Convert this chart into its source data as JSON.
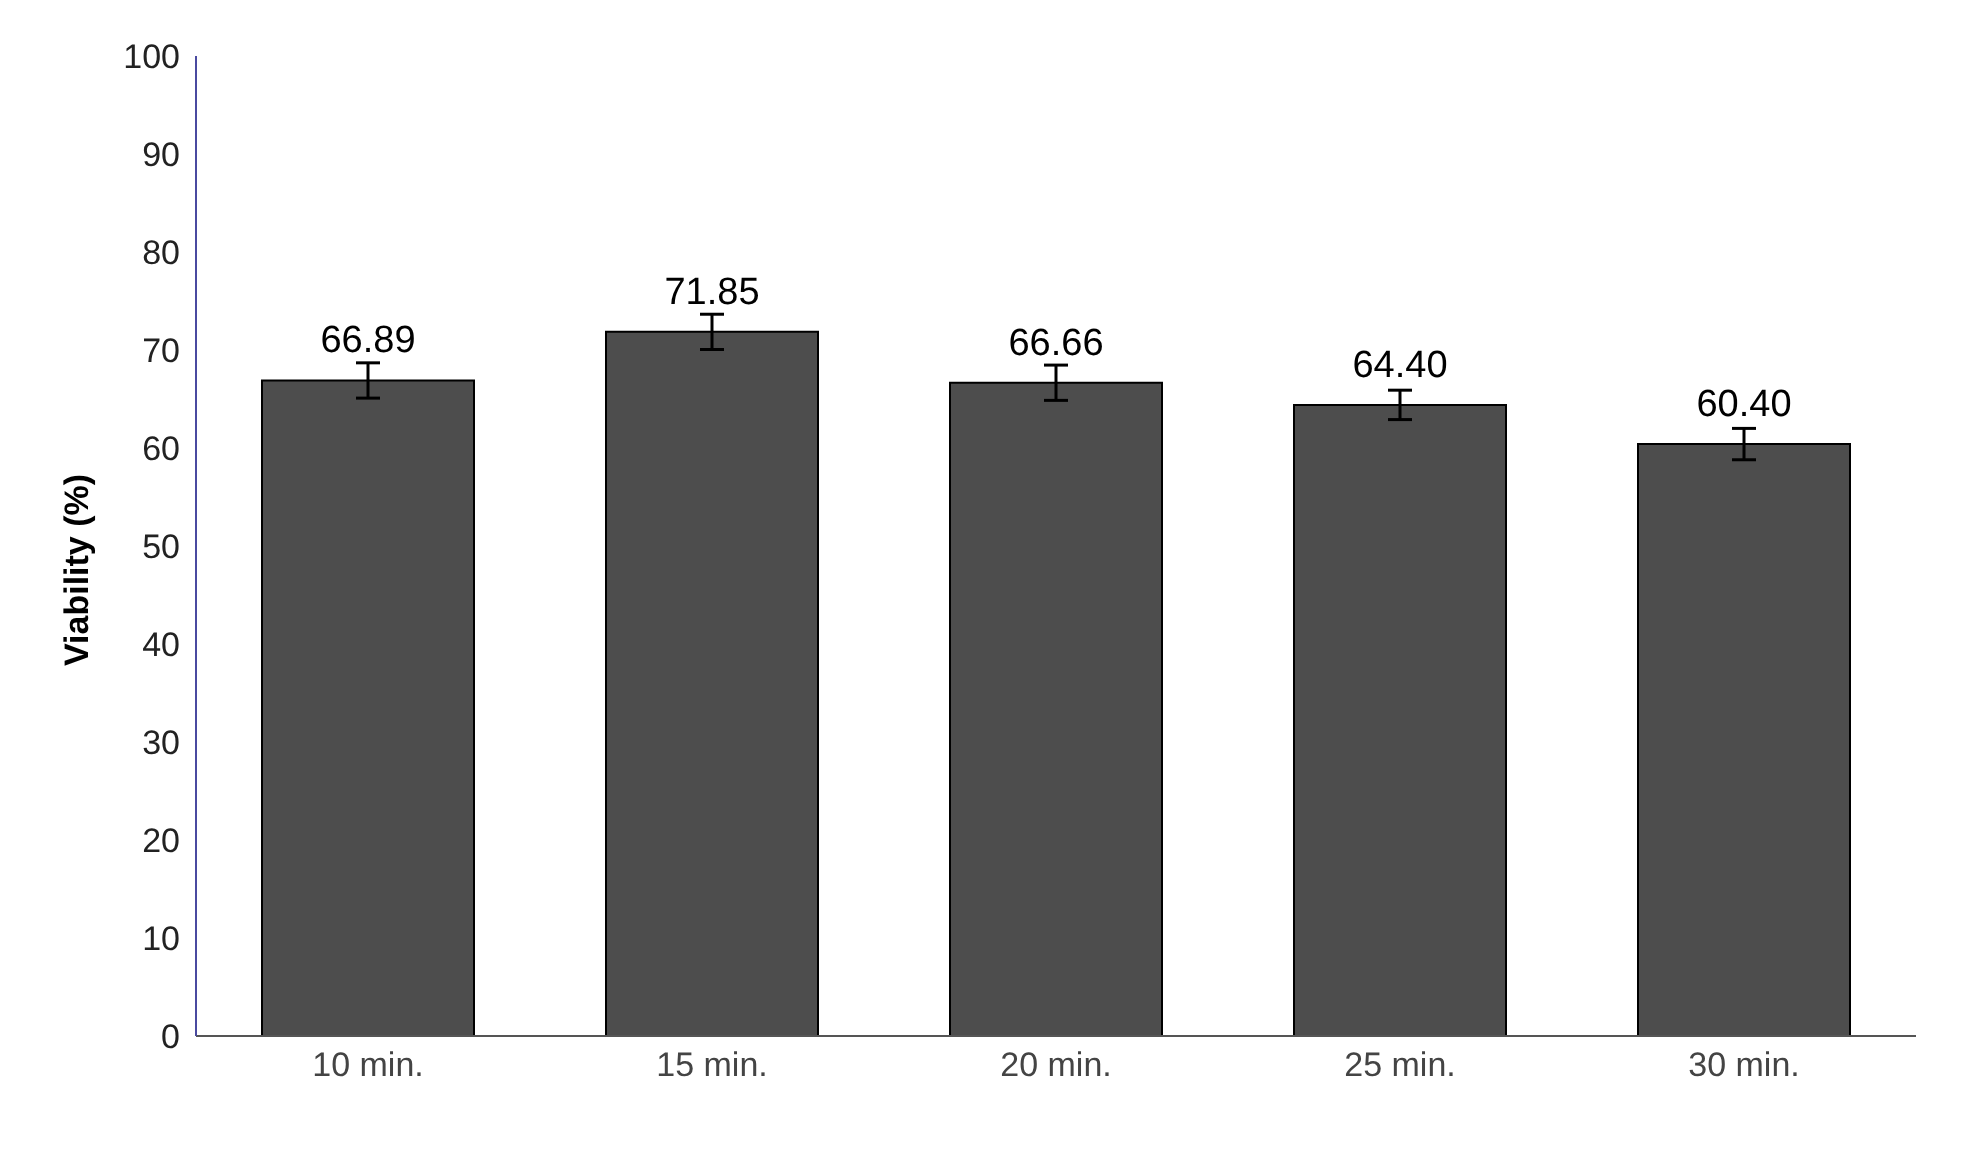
{
  "chart_data": {
    "type": "bar",
    "ylabel": "Viability (%)",
    "categories": [
      "10 min.",
      "15 min.",
      "20 min.",
      "25 min.",
      "30 min."
    ],
    "values": [
      66.89,
      71.85,
      66.66,
      64.4,
      60.4
    ],
    "value_labels": [
      "66.89",
      "71.85",
      "66.66",
      "64.40",
      "60.40"
    ],
    "errors": [
      1.8,
      1.8,
      1.8,
      1.5,
      1.6
    ],
    "color": "#4d4d4d",
    "ylim": [
      0,
      100
    ],
    "yticks": [
      0,
      10,
      20,
      30,
      40,
      50,
      60,
      70,
      80,
      90,
      100
    ],
    "grid": false,
    "legend": false
  }
}
